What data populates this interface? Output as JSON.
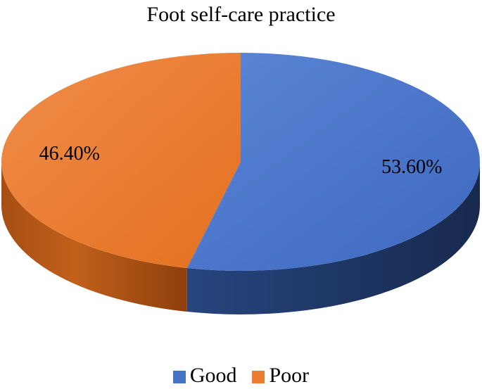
{
  "chart_data": {
    "type": "pie",
    "title": "Foot self-care practice",
    "slices": [
      {
        "label": "Good",
        "value": 53.6,
        "display": "53.60%",
        "color": "#4472c4"
      },
      {
        "label": "Poor",
        "value": 46.4,
        "display": "46.40%",
        "color": "#ed7d31"
      }
    ],
    "style": "3d",
    "legend_position": "bottom"
  }
}
